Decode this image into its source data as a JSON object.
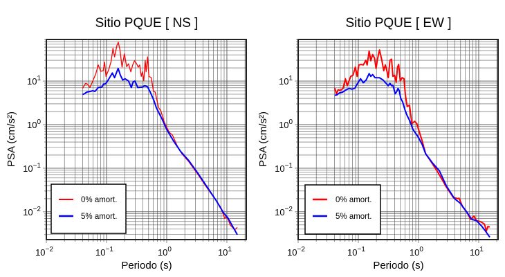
{
  "chart_data": [
    {
      "type": "line",
      "title": "Sitio PQUE [ NS ]",
      "xlabel": "Periodo (s)",
      "ylabel": "PSA (cm/s²)",
      "xscale": "log",
      "yscale": "log",
      "xlim": [
        0.01,
        21
      ],
      "ylim": [
        0.0023,
        90
      ],
      "grid": true,
      "legend_position": "bottom-left",
      "xticks": [
        {
          "base": "10",
          "exp": "−2",
          "value": 0.01
        },
        {
          "base": "10",
          "exp": "−1",
          "value": 0.1
        },
        {
          "base": "10",
          "exp": "0",
          "value": 1
        },
        {
          "base": "10",
          "exp": "1",
          "value": 10
        }
      ],
      "yticks": [
        {
          "base": "10",
          "exp": "−2",
          "value": 0.01
        },
        {
          "base": "10",
          "exp": "−1",
          "value": 0.1
        },
        {
          "base": "10",
          "exp": "0",
          "value": 1
        },
        {
          "base": "10",
          "exp": "1",
          "value": 10
        }
      ],
      "series": [
        {
          "name": "0% amort.",
          "color": "#ff0000",
          "x": [
            0.04,
            0.045,
            0.049,
            0.053,
            0.059,
            0.066,
            0.073,
            0.08,
            0.088,
            0.093,
            0.098,
            0.109,
            0.119,
            0.128,
            0.136,
            0.149,
            0.157,
            0.167,
            0.181,
            0.198,
            0.216,
            0.232,
            0.253,
            0.272,
            0.292,
            0.316,
            0.336,
            0.355,
            0.378,
            0.395,
            0.416,
            0.439,
            0.455,
            0.48,
            0.506,
            0.553,
            0.604,
            0.643,
            0.733,
            0.802,
            0.916,
            1.09,
            1.25,
            1.49,
            1.78,
            2.32,
            3.3,
            4.71,
            6.71,
            8.01,
            9.16,
            9.58,
            10.5,
            11.4,
            13.6,
            14.9
          ],
          "y": [
            6.8,
            8.9,
            8.3,
            7.1,
            10,
            14.4,
            23.4,
            16.7,
            17.3,
            27.2,
            12.8,
            18.4,
            28.2,
            56.4,
            35.9,
            66.1,
            77.4,
            51.8,
            20.8,
            42.1,
            21.3,
            24.9,
            16.3,
            23.4,
            29.3,
            24.9,
            20.8,
            23.4,
            12.8,
            16.3,
            10,
            29.9,
            16.3,
            35.9,
            12.8,
            12.0,
            5.78,
            5.57,
            2.47,
            2.05,
            1.12,
            0.686,
            0.571,
            0.33,
            0.216,
            0.141,
            0.072,
            0.0347,
            0.0177,
            0.0123,
            0.0071,
            0.0077,
            0.0067,
            0.0049,
            0.0039,
            0.0044
          ]
        },
        {
          "name": "5% amort.",
          "color": "#0000ff",
          "x": [
            0.04,
            0.0431,
            0.047,
            0.0538,
            0.059,
            0.0643,
            0.073,
            0.0838,
            0.0891,
            0.0957,
            0.104,
            0.114,
            0.125,
            0.136,
            0.156,
            0.17,
            0.186,
            0.203,
            0.232,
            0.258,
            0.277,
            0.297,
            0.33,
            0.395,
            0.431,
            0.48,
            0.538,
            0.614,
            0.671,
            0.733,
            0.838,
            1.0,
            1.3,
            1.7,
            2.32,
            3.3,
            4.71,
            6.71,
            8.75,
            10.5,
            12.5,
            14.9
          ],
          "y": [
            4.93,
            5.12,
            5.57,
            5.78,
            6.0,
            5.78,
            7.1,
            7.3,
            8.5,
            8.6,
            10,
            12.3,
            15.3,
            12.0,
            19.5,
            13.6,
            10.6,
            11.3,
            10,
            7.1,
            9.6,
            10,
            7.1,
            7.3,
            7.8,
            7.4,
            5.4,
            3.55,
            2.47,
            1.93,
            1.34,
            0.774,
            0.421,
            0.243,
            0.15,
            0.0766,
            0.0368,
            0.0177,
            0.0096,
            0.0071,
            0.0046,
            0.003
          ]
        }
      ]
    },
    {
      "type": "line",
      "title": "Sitio PQUE [ EW ]",
      "xlabel": "Periodo (s)",
      "ylabel": "PSA (cm/s²)",
      "xscale": "log",
      "yscale": "log",
      "xlim": [
        0.01,
        21
      ],
      "ylim": [
        0.0023,
        90
      ],
      "grid": true,
      "legend_position": "bottom-left",
      "xticks": [
        {
          "base": "10",
          "exp": "−2",
          "value": 0.01
        },
        {
          "base": "10",
          "exp": "−1",
          "value": 0.1
        },
        {
          "base": "10",
          "exp": "0",
          "value": 1
        },
        {
          "base": "10",
          "exp": "1",
          "value": 10
        }
      ],
      "yticks": [
        {
          "base": "10",
          "exp": "−2",
          "value": 0.01
        },
        {
          "base": "10",
          "exp": "−1",
          "value": 0.1
        },
        {
          "base": "10",
          "exp": "0",
          "value": 1
        },
        {
          "base": "10",
          "exp": "1",
          "value": 10
        }
      ],
      "series": [
        {
          "name": "0% amort.",
          "color": "#ff0000",
          "x": [
            0.0406,
            0.0433,
            0.046,
            0.0502,
            0.0558,
            0.061,
            0.0654,
            0.0748,
            0.0816,
            0.0891,
            0.0957,
            0.102,
            0.111,
            0.121,
            0.133,
            0.14,
            0.151,
            0.161,
            0.173,
            0.186,
            0.197,
            0.21,
            0.225,
            0.246,
            0.264,
            0.281,
            0.298,
            0.315,
            0.335,
            0.356,
            0.376,
            0.4,
            0.425,
            0.448,
            0.468,
            0.498,
            0.535,
            0.574,
            0.605,
            0.649,
            0.709,
            0.775,
            0.861,
            0.94,
            1.03,
            1.15,
            1.31,
            1.57,
            2.04,
            2.91,
            3.79,
            4.52,
            4.72,
            5.4,
            6.43,
            7.34,
            8.37,
            9.15,
            10.9,
            12.5,
            13.4,
            14.2,
            15.3
          ],
          "y": [
            6.9,
            5.1,
            6.3,
            6.1,
            6.8,
            11.3,
            7.8,
            12.8,
            13.6,
            20.8,
            12.8,
            23.4,
            24.0,
            23.4,
            29.9,
            23.4,
            48.7,
            29.3,
            40.5,
            33.8,
            19.5,
            33.8,
            51.8,
            29.9,
            17.3,
            23.4,
            17.3,
            12.0,
            29.9,
            31.8,
            12.8,
            13.6,
            9.4,
            20.8,
            24.0,
            10,
            12.0,
            11.3,
            4.8,
            2.62,
            2.78,
            1.05,
            1.19,
            1.05,
            0.686,
            0.421,
            0.216,
            0.15,
            0.0865,
            0.0368,
            0.0213,
            0.02,
            0.0205,
            0.0131,
            0.0096,
            0.0067,
            0.008,
            0.0063,
            0.0059,
            0.0052,
            0.0036,
            0.0046,
            0.0045
          ]
        },
        {
          "name": "5% amort.",
          "color": "#0000ff",
          "x": [
            0.0406,
            0.044,
            0.048,
            0.0548,
            0.0626,
            0.0703,
            0.0782,
            0.0869,
            0.0975,
            0.109,
            0.121,
            0.135,
            0.151,
            0.161,
            0.173,
            0.189,
            0.225,
            0.257,
            0.288,
            0.315,
            0.335,
            0.356,
            0.376,
            0.41,
            0.436,
            0.456,
            0.477,
            0.507,
            0.544,
            0.595,
            0.649,
            0.709,
            0.809,
            0.974,
            1.15,
            1.31,
            1.71,
            2.23,
            2.91,
            3.96,
            4.93,
            6.43,
            7.67,
            9.15,
            10.9,
            13.0,
            15.3
          ],
          "y": [
            4.7,
            4.8,
            5.3,
            5.57,
            6.3,
            6.8,
            6.5,
            6.8,
            8.9,
            11.3,
            9.1,
            10.6,
            14.8,
            12.8,
            14.1,
            12.0,
            11.9,
            10.6,
            8.9,
            7.8,
            8.9,
            7.8,
            8.0,
            5.1,
            5.78,
            6.8,
            6.1,
            4.0,
            3.34,
            2.18,
            1.61,
            1.26,
            0.774,
            0.537,
            0.351,
            0.216,
            0.132,
            0.0865,
            0.0392,
            0.02,
            0.0157,
            0.0096,
            0.0067,
            0.0063,
            0.0049,
            0.0036,
            0.0026
          ]
        }
      ]
    }
  ]
}
